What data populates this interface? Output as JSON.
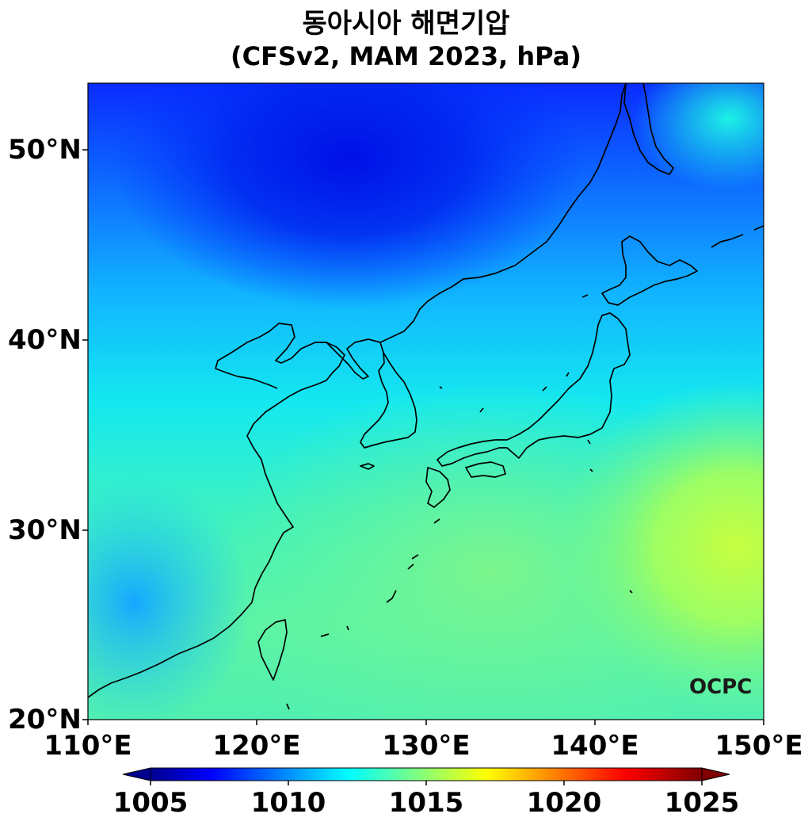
{
  "title": {
    "line1": "동아시아 해면기압",
    "line2": "(CFSv2, MAM 2023, hPa)"
  },
  "map": {
    "lon_range": [
      110,
      150
    ],
    "lat_range": [
      20,
      53.5
    ],
    "lat_ticks": [
      "50°N",
      "40°N",
      "30°N",
      "20°N"
    ],
    "lon_ticks": [
      "110°E",
      "120°E",
      "130°E",
      "140°E",
      "150°E"
    ],
    "watermark": "OCPC"
  },
  "colorbar": {
    "colormap": "jet",
    "min": 1005,
    "max": 1025,
    "extend": "both",
    "tick_labels": [
      "1005",
      "1010",
      "1015",
      "1020",
      "1025"
    ]
  }
}
